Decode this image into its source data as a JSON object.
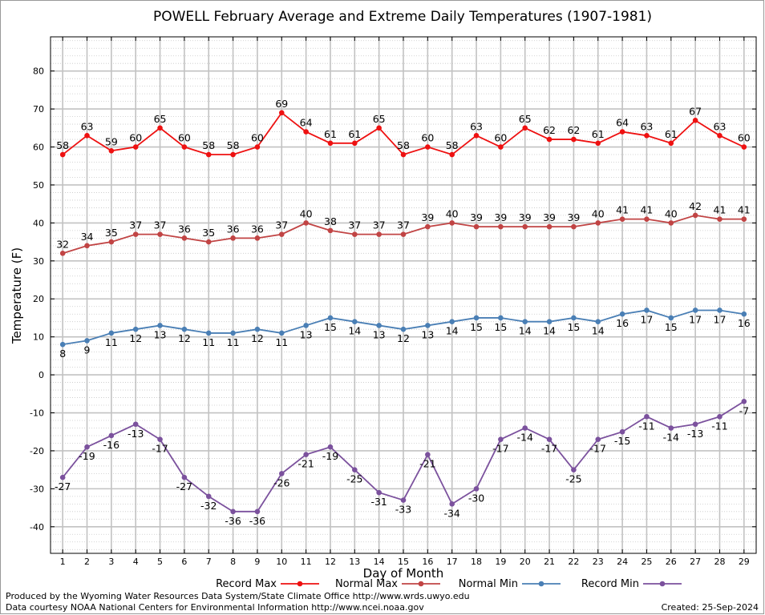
{
  "chart_data": {
    "type": "line",
    "title": "POWELL February Average and Extreme Daily Temperatures (1907-1981)",
    "xlabel": "Day of Month",
    "ylabel": "Temperature (F)",
    "ylim": [
      -47,
      89
    ],
    "yticks": [
      -40,
      -30,
      -20,
      -10,
      0,
      10,
      20,
      30,
      40,
      50,
      60,
      70,
      80
    ],
    "grid": true,
    "legend_position": "bottom",
    "x": [
      1,
      2,
      3,
      4,
      5,
      6,
      7,
      8,
      9,
      10,
      11,
      12,
      13,
      14,
      15,
      16,
      17,
      18,
      19,
      20,
      21,
      22,
      23,
      24,
      25,
      26,
      27,
      28,
      29
    ],
    "series": [
      {
        "name": "Record Max",
        "color": "#ee1111",
        "label_pos": "above",
        "values": [
          58,
          63,
          59,
          60,
          65,
          60,
          58,
          58,
          60,
          69,
          64,
          61,
          61,
          65,
          58,
          60,
          58,
          63,
          60,
          65,
          62,
          62,
          61,
          64,
          63,
          61,
          67,
          63,
          60
        ]
      },
      {
        "name": "Normal Max",
        "color": "#c14444",
        "label_pos": "above",
        "values": [
          32,
          34,
          35,
          37,
          37,
          36,
          35,
          36,
          36,
          37,
          40,
          38,
          37,
          37,
          37,
          39,
          40,
          39,
          39,
          39,
          39,
          39,
          40,
          41,
          41,
          40,
          42,
          41,
          41
        ]
      },
      {
        "name": "Normal Min",
        "color": "#4a7fb5",
        "label_pos": "below",
        "values": [
          8,
          9,
          11,
          12,
          13,
          12,
          11,
          11,
          12,
          11,
          13,
          15,
          14,
          13,
          12,
          13,
          14,
          15,
          15,
          14,
          14,
          15,
          14,
          16,
          17,
          15,
          17,
          17,
          16
        ]
      },
      {
        "name": "Record Min",
        "color": "#7b519d",
        "label_pos": "below",
        "values": [
          -27,
          -19,
          -16,
          -13,
          -17,
          -27,
          -32,
          -36,
          -36,
          -26,
          -21,
          -19,
          -25,
          -31,
          -33,
          -21,
          -34,
          -30,
          -17,
          -14,
          -17,
          -25,
          -17,
          -15,
          -11,
          -14,
          -13,
          -11,
          -7
        ]
      }
    ]
  },
  "footer": {
    "line1": "Produced by the Wyoming Water Resources Data System/State Climate Office http://www.wrds.uwyo.edu",
    "line2": "Data courtesy NOAA National Centers for Environmental Information http://www.ncei.noaa.gov",
    "created": "Created: 25-Sep-2024"
  }
}
